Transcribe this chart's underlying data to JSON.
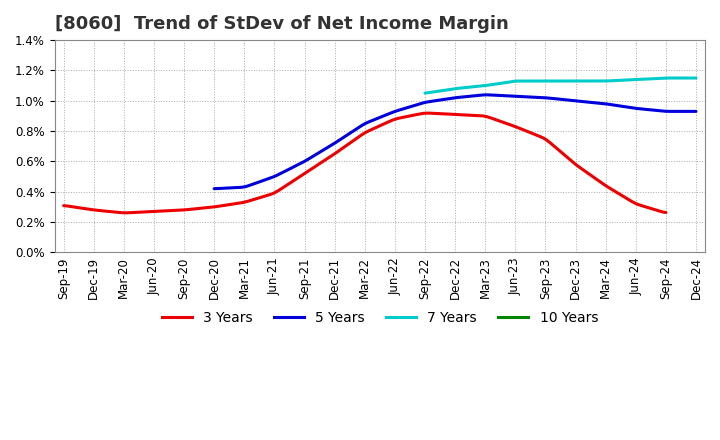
{
  "title": "[8060]  Trend of StDev of Net Income Margin",
  "background_color": "#ffffff",
  "plot_bg_color": "#ffffff",
  "grid_color": "#aaaaaa",
  "x_labels": [
    "Sep-19",
    "Dec-19",
    "Mar-20",
    "Jun-20",
    "Sep-20",
    "Dec-20",
    "Mar-21",
    "Jun-21",
    "Sep-21",
    "Dec-21",
    "Mar-22",
    "Jun-22",
    "Sep-22",
    "Dec-22",
    "Mar-23",
    "Jun-23",
    "Sep-23",
    "Dec-23",
    "Mar-24",
    "Jun-24",
    "Sep-24",
    "Dec-24"
  ],
  "series": {
    "3 Years": {
      "color": "#ee0000",
      "values": [
        0.0031,
        0.0028,
        0.0026,
        0.0027,
        0.0028,
        0.003,
        0.0033,
        0.0039,
        0.0052,
        0.0065,
        0.0079,
        0.0088,
        0.0092,
        0.0091,
        0.009,
        0.0083,
        0.0075,
        0.0058,
        0.0044,
        0.0032,
        0.0026,
        null
      ]
    },
    "5 Years": {
      "color": "#0000dd",
      "values": [
        null,
        null,
        null,
        null,
        null,
        0.0042,
        0.0043,
        0.005,
        0.006,
        0.0072,
        0.0085,
        0.0093,
        0.0099,
        0.0102,
        0.0104,
        0.0103,
        0.0102,
        0.01,
        0.0098,
        0.0095,
        0.0093,
        0.0093
      ]
    },
    "7 Years": {
      "color": "#00cccc",
      "values": [
        null,
        null,
        null,
        null,
        null,
        null,
        null,
        null,
        null,
        null,
        null,
        null,
        0.0105,
        0.0108,
        0.011,
        0.0113,
        0.0113,
        0.0113,
        0.0113,
        0.0114,
        0.0115,
        0.0115
      ]
    },
    "10 Years": {
      "color": "#008800",
      "values": [
        null,
        null,
        null,
        null,
        null,
        null,
        null,
        null,
        null,
        null,
        null,
        null,
        null,
        null,
        null,
        null,
        null,
        null,
        null,
        null,
        null,
        null
      ]
    }
  },
  "ylim": [
    0.0,
    0.014
  ],
  "yticks": [
    0.0,
    0.002,
    0.004,
    0.006,
    0.008,
    0.01,
    0.012,
    0.014
  ],
  "title_fontsize": 13,
  "legend_fontsize": 10,
  "axis_fontsize": 8.5
}
